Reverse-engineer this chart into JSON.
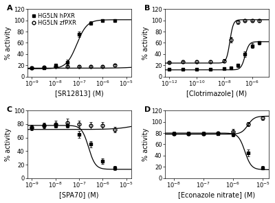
{
  "panels": [
    {
      "label": "A",
      "xlabel": "[SR12813] (M)",
      "series": [
        {
          "name": "HG5LN hPXR",
          "marker": "s",
          "fillstyle": "full",
          "color": "black",
          "x_log": [
            -9,
            -8.5,
            -8,
            -7.5,
            -7,
            -6.5,
            -6,
            -5.5
          ],
          "y": [
            15,
            15,
            20,
            25,
            75,
            95,
            100,
            100
          ],
          "yerr": [
            2,
            2,
            2,
            5,
            5,
            3,
            2,
            2
          ],
          "fit": true,
          "fit_ec50": -7.1,
          "fit_hill": 2.0,
          "fit_bottom": 14,
          "fit_top": 101
        },
        {
          "name": "HG5LN zfPXR",
          "marker": "o",
          "fillstyle": "none",
          "color": "black",
          "x_log": [
            -9,
            -8.5,
            -8,
            -7.5,
            -7,
            -6.5,
            -6,
            -5.5
          ],
          "y": [
            15,
            17,
            18,
            18,
            18,
            18,
            18,
            20
          ],
          "yerr": [
            1,
            1,
            1,
            1,
            1,
            1,
            1,
            2
          ],
          "fit": true,
          "fit_ec50": -4.0,
          "fit_hill": 1.0,
          "fit_bottom": 15,
          "fit_top": 25
        }
      ],
      "ylim": [
        0,
        120
      ],
      "yticks": [
        0,
        20,
        40,
        60,
        80,
        100,
        120
      ],
      "xlim_log": [
        -9.2,
        -4.8
      ],
      "xticks_log": [
        -9,
        -8,
        -7,
        -6,
        -5
      ],
      "legend": true
    },
    {
      "label": "B",
      "xlabel": "[Clotrimazole] (M)",
      "series": [
        {
          "name": "HG5LN hPXR",
          "marker": "s",
          "fillstyle": "full",
          "color": "black",
          "x_log": [
            -12,
            -11,
            -10,
            -9,
            -8,
            -7.5,
            -7,
            -6.5,
            -6,
            -5.5
          ],
          "y": [
            13,
            13,
            13,
            13,
            14,
            15,
            20,
            40,
            55,
            60
          ],
          "yerr": [
            1,
            1,
            1,
            1,
            1,
            2,
            3,
            5,
            4,
            3
          ],
          "fit": true,
          "fit_ec50": -6.5,
          "fit_hill": 3.0,
          "fit_bottom": 12,
          "fit_top": 62
        },
        {
          "name": "HG5LN zfPXR",
          "marker": "o",
          "fillstyle": "none",
          "color": "black",
          "x_log": [
            -12,
            -11,
            -10,
            -9,
            -8,
            -7.5,
            -7,
            -6.5,
            -6,
            -5.5
          ],
          "y": [
            25,
            26,
            27,
            27,
            28,
            65,
            97,
            100,
            100,
            99
          ],
          "yerr": [
            2,
            2,
            2,
            2,
            3,
            5,
            3,
            2,
            2,
            2
          ],
          "fit": true,
          "fit_ec50": -7.6,
          "fit_hill": 3.5,
          "fit_bottom": 24,
          "fit_top": 101
        }
      ],
      "ylim": [
        0,
        120
      ],
      "yticks": [
        0,
        20,
        40,
        60,
        80,
        100,
        120
      ],
      "xlim_log": [
        -12.3,
        -4.8
      ],
      "xticks_log": [
        -12,
        -10,
        -8,
        -6
      ],
      "legend": false
    },
    {
      "label": "C",
      "xlabel": "[SPA70] (M)",
      "series": [
        {
          "name": "HG5LN hPXR",
          "marker": "s",
          "fillstyle": "full",
          "color": "black",
          "x_log": [
            -9,
            -8.5,
            -8,
            -7.5,
            -7,
            -6.5,
            -6,
            -5.5
          ],
          "y": [
            75,
            78,
            78,
            78,
            65,
            50,
            25,
            15
          ],
          "yerr": [
            3,
            3,
            3,
            3,
            5,
            5,
            4,
            3
          ],
          "fit": true,
          "fit_ec50": -6.6,
          "fit_hill": -3.0,
          "fit_bottom": 13,
          "fit_top": 78
        },
        {
          "name": "HG5LN zfPXR",
          "marker": "o",
          "fillstyle": "none",
          "color": "black",
          "x_log": [
            -9,
            -8.5,
            -8,
            -7.5,
            -7,
            -6.5,
            -6,
            -5.5
          ],
          "y": [
            75,
            78,
            80,
            82,
            80,
            78,
            78,
            72
          ],
          "yerr": [
            4,
            4,
            5,
            6,
            5,
            5,
            5,
            4
          ],
          "fit": true,
          "fit_ec50": -4.5,
          "fit_hill": 1.0,
          "fit_bottom": 72,
          "fit_top": 85
        }
      ],
      "ylim": [
        0,
        100
      ],
      "yticks": [
        0,
        20,
        40,
        60,
        80,
        100
      ],
      "xlim_log": [
        -9.2,
        -4.8
      ],
      "xticks_log": [
        -9,
        -8,
        -7,
        -6,
        -5
      ],
      "legend": false
    },
    {
      "label": "D",
      "xlabel": "[Econazole nitrate] (M)",
      "series": [
        {
          "name": "HG5LN hPXR",
          "marker": "s",
          "fillstyle": "full",
          "color": "black",
          "x_log": [
            -8,
            -7.5,
            -7,
            -6.5,
            -6,
            -5.5,
            -5
          ],
          "y": [
            79,
            79,
            79,
            79,
            78,
            45,
            18
          ],
          "yerr": [
            3,
            3,
            3,
            3,
            4,
            6,
            3
          ],
          "fit": true,
          "fit_ec50": -5.6,
          "fit_hill": -4.0,
          "fit_bottom": 15,
          "fit_top": 80
        },
        {
          "name": "HG5LN zfPXR",
          "marker": "o",
          "fillstyle": "none",
          "color": "black",
          "x_log": [
            -8,
            -7.5,
            -7,
            -6.5,
            -6,
            -5.5,
            -5
          ],
          "y": [
            79,
            79,
            79,
            80,
            83,
            96,
            107
          ],
          "yerr": [
            3,
            3,
            3,
            3,
            4,
            4,
            4
          ],
          "fit": true,
          "fit_ec50": -5.5,
          "fit_hill": 4.0,
          "fit_bottom": 78,
          "fit_top": 110
        }
      ],
      "ylim": [
        0,
        120
      ],
      "yticks": [
        0,
        20,
        40,
        60,
        80,
        100,
        120
      ],
      "xlim_log": [
        -8.3,
        -4.8
      ],
      "xticks_log": [
        -8,
        -7,
        -6,
        -5
      ],
      "legend": false
    }
  ],
  "background_color": "#ffffff",
  "fontsize": 7,
  "tick_fontsize": 6,
  "markersize": 3.5,
  "linewidth": 0.9,
  "capsize": 1.5,
  "elinewidth": 0.6
}
